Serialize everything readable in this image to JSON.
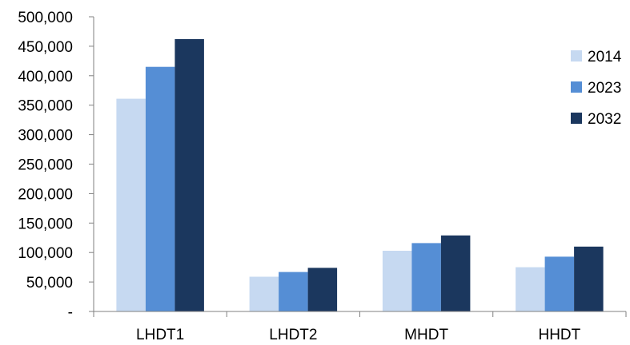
{
  "chart_data": {
    "type": "bar",
    "title": "",
    "xlabel": "",
    "ylabel": "",
    "categories": [
      "LHDT1",
      "LHDT2",
      "MHDT",
      "HHDT"
    ],
    "series": [
      {
        "name": "2014",
        "color": "#c6d9f1",
        "values": [
          361000,
          59000,
          103000,
          75000
        ]
      },
      {
        "name": "2023",
        "color": "#558ed5",
        "values": [
          415000,
          67000,
          116000,
          93000
        ]
      },
      {
        "name": "2032",
        "color": "#1b375e",
        "values": [
          462000,
          74000,
          129000,
          110000
        ]
      }
    ],
    "ylim": [
      0,
      500000
    ],
    "yticks": [
      0,
      50000,
      100000,
      150000,
      200000,
      250000,
      300000,
      350000,
      400000,
      450000,
      500000
    ],
    "ytick_labels": [
      "-",
      "50,000",
      "100,000",
      "150,000",
      "200,000",
      "250,000",
      "300,000",
      "350,000",
      "400,000",
      "450,000",
      "500,000"
    ],
    "grid": false,
    "legend_position": "right"
  }
}
